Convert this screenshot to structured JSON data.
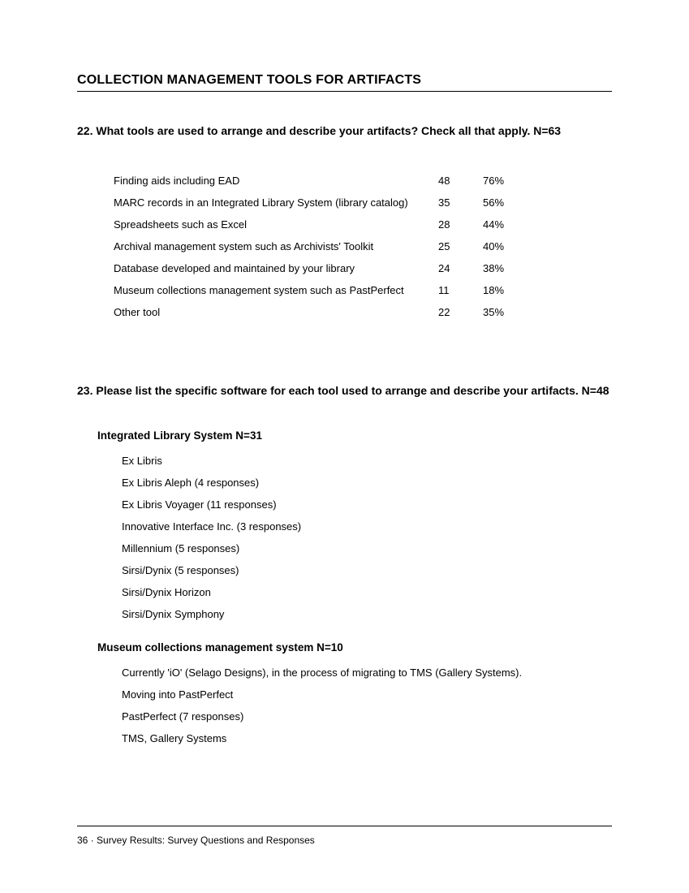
{
  "section_heading": "COLLECTION MANAGEMENT TOOLS FOR ARTIFACTS",
  "q22": {
    "text": "22.  What tools are used to arrange and describe your artifacts? Check all that apply. N=63",
    "rows": [
      {
        "label": "Finding aids including EAD",
        "count": "48",
        "pct": "76%"
      },
      {
        "label": "MARC records in an Integrated Library System (library catalog)",
        "count": "35",
        "pct": "56%"
      },
      {
        "label": "Spreadsheets such as Excel",
        "count": "28",
        "pct": "44%"
      },
      {
        "label": "Archival management system such as Archivists' Toolkit",
        "count": "25",
        "pct": "40%"
      },
      {
        "label": "Database developed and maintained by your library",
        "count": "24",
        "pct": "38%"
      },
      {
        "label": "Museum collections management system such as PastPerfect",
        "count": "11",
        "pct": "18%"
      },
      {
        "label": "Other tool",
        "count": "22",
        "pct": "35%"
      }
    ]
  },
  "q23": {
    "text": "23.  Please list the specific software for each tool used to arrange and describe your artifacts. N=48",
    "group1_head": "Integrated Library System N=31",
    "group1_items": [
      "Ex Libris",
      "Ex Libris Aleph (4 responses)",
      "Ex Libris Voyager (11 responses)",
      "Innovative Interface Inc. (3 responses)",
      "Millennium (5 responses)",
      "Sirsi/Dynix (5 responses)",
      "Sirsi/Dynix Horizon",
      "Sirsi/Dynix Symphony"
    ],
    "group2_head": "Museum collections management system N=10",
    "group2_items": [
      "Currently 'iO' (Selago Designs), in the process of migrating to TMS (Gallery Systems).",
      "Moving into PastPerfect",
      "PastPerfect (7 responses)",
      "TMS, Gallery Systems"
    ]
  },
  "footer": "36  ·  Survey Results:  Survey Questions and Responses"
}
